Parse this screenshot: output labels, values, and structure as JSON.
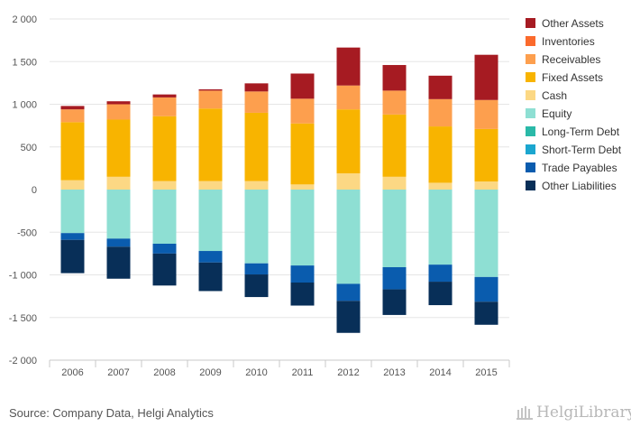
{
  "chart_data": {
    "type": "bar",
    "stacked": true,
    "categories": [
      "2006",
      "2007",
      "2008",
      "2009",
      "2010",
      "2011",
      "2012",
      "2013",
      "2014",
      "2015"
    ],
    "ylim": [
      -2000,
      2000
    ],
    "yticks": [
      2000,
      1500,
      1000,
      500,
      0,
      -500,
      -1000,
      -1500,
      -2000
    ],
    "ytick_labels": [
      "2 000",
      "1 500",
      "1 000",
      "500",
      "0",
      "-500",
      "-1 000",
      "-1 500",
      "-2 000"
    ],
    "grid": true,
    "legend_position": "right",
    "assets": [
      {
        "name": "Cash",
        "color": "#fcd884",
        "values": [
          110,
          150,
          100,
          100,
          100,
          60,
          190,
          150,
          80,
          95
        ]
      },
      {
        "name": "Fixed Assets",
        "color": "#f8b400",
        "values": [
          680,
          670,
          760,
          850,
          800,
          715,
          750,
          730,
          660,
          615
        ]
      },
      {
        "name": "Receivables",
        "color": "#fd9f4e",
        "values": [
          150,
          180,
          220,
          210,
          250,
          290,
          280,
          280,
          320,
          340
        ]
      },
      {
        "name": "Inventories",
        "color": "#fb6a2c",
        "values": [
          0,
          0,
          0,
          0,
          0,
          0,
          0,
          0,
          0,
          0
        ]
      },
      {
        "name": "Other Assets",
        "color": "#a61b22",
        "values": [
          40,
          35,
          35,
          15,
          95,
          295,
          445,
          300,
          275,
          530
        ]
      }
    ],
    "liabilities": [
      {
        "name": "Equity",
        "color": "#8edfd3",
        "values": [
          510,
          575,
          635,
          720,
          865,
          890,
          1105,
          910,
          880,
          1025
        ]
      },
      {
        "name": "Long-Term Debt",
        "color": "#2ab9a8",
        "values": [
          0,
          0,
          0,
          0,
          0,
          0,
          0,
          0,
          0,
          0
        ]
      },
      {
        "name": "Short-Term Debt",
        "color": "#1ba6cf",
        "values": [
          0,
          0,
          0,
          0,
          0,
          0,
          0,
          0,
          0,
          0
        ]
      },
      {
        "name": "Trade Payables",
        "color": "#0a5cae",
        "values": [
          80,
          95,
          115,
          135,
          130,
          200,
          200,
          260,
          200,
          290
        ]
      },
      {
        "name": "Other Liabilities",
        "color": "#082f58",
        "values": [
          390,
          375,
          375,
          335,
          265,
          270,
          375,
          300,
          275,
          270
        ]
      }
    ],
    "legend": [
      {
        "name": "Other Assets",
        "color": "#a61b22"
      },
      {
        "name": "Inventories",
        "color": "#fb6a2c"
      },
      {
        "name": "Receivables",
        "color": "#fd9f4e"
      },
      {
        "name": "Fixed Assets",
        "color": "#f8b400"
      },
      {
        "name": "Cash",
        "color": "#fcd884"
      },
      {
        "name": "Equity",
        "color": "#8edfd3"
      },
      {
        "name": "Long-Term Debt",
        "color": "#2ab9a8"
      },
      {
        "name": "Short-Term Debt",
        "color": "#1ba6cf"
      },
      {
        "name": "Trade Payables",
        "color": "#0a5cae"
      },
      {
        "name": "Other Liabilities",
        "color": "#082f58"
      }
    ]
  },
  "footer": {
    "source": "Source: Company Data, Helgi Analytics",
    "logo_text": "HelgiLibrary"
  }
}
